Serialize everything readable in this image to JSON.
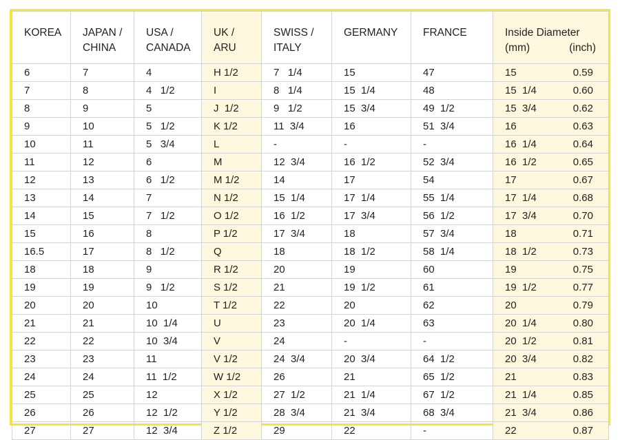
{
  "table": {
    "headers": {
      "korea": "KOREA",
      "japan_china": [
        "JAPAN /",
        "CHINA"
      ],
      "usa_canada": [
        "USA /",
        "CANADA"
      ],
      "uk_aru": [
        "UK /",
        "ARU"
      ],
      "swiss_italy": [
        "SWISS /",
        "ITALY"
      ],
      "germany": "GERMANY",
      "france": "FRANCE",
      "diameter": {
        "title": "Inside Diameter",
        "mm_unit": "(mm)",
        "inch_unit": "(inch)"
      }
    },
    "rows": [
      {
        "korea": "6",
        "japan": "7",
        "usa": "4",
        "uk": "H 1/2",
        "swiss": "7   1/4",
        "germany": "15",
        "france": "47",
        "mm": "15",
        "inch": "0.59"
      },
      {
        "korea": "7",
        "japan": "8",
        "usa": "4   1/2",
        "uk": "I",
        "swiss": "8   1/4",
        "germany": "15  1/4",
        "france": "48",
        "mm": "15  1/4",
        "inch": "0.60"
      },
      {
        "korea": "8",
        "japan": "9",
        "usa": "5",
        "uk": "J  1/2",
        "swiss": "9   1/2",
        "germany": "15  3/4",
        "france": "49  1/2",
        "mm": "15  3/4",
        "inch": "0.62"
      },
      {
        "korea": "9",
        "japan": "10",
        "usa": "5   1/2",
        "uk": "K 1/2",
        "swiss": "11  3/4",
        "germany": "16",
        "france": "51  3/4",
        "mm": "16",
        "inch": "0.63"
      },
      {
        "korea": "10",
        "japan": "11",
        "usa": "5   3/4",
        "uk": "L",
        "swiss": "-",
        "germany": "-",
        "france": "-",
        "mm": "16  1/4",
        "inch": "0.64"
      },
      {
        "korea": "11",
        "japan": "12",
        "usa": "6",
        "uk": "M",
        "swiss": "12  3/4",
        "germany": "16  1/2",
        "france": "52  3/4",
        "mm": "16  1/2",
        "inch": "0.65"
      },
      {
        "korea": "12",
        "japan": "13",
        "usa": "6   1/2",
        "uk": "M 1/2",
        "swiss": "14",
        "germany": "17",
        "france": "54",
        "mm": "17",
        "inch": "0.67"
      },
      {
        "korea": "13",
        "japan": "14",
        "usa": "7",
        "uk": "N 1/2",
        "swiss": "15  1/4",
        "germany": "17  1/4",
        "france": "55  1/4",
        "mm": "17  1/4",
        "inch": "0.68"
      },
      {
        "korea": "14",
        "japan": "15",
        "usa": "7   1/2",
        "uk": "O 1/2",
        "swiss": "16  1/2",
        "germany": "17  3/4",
        "france": "56  1/2",
        "mm": "17  3/4",
        "inch": "0.70"
      },
      {
        "korea": "15",
        "japan": "16",
        "usa": "8",
        "uk": "P 1/2",
        "swiss": "17  3/4",
        "germany": "18",
        "france": "57  3/4",
        "mm": "18",
        "inch": "0.71"
      },
      {
        "korea": "16.5",
        "japan": "17",
        "usa": "8   1/2",
        "uk": "Q",
        "swiss": "18",
        "germany": "18  1/2",
        "france": "58  1/4",
        "mm": "18  1/2",
        "inch": "0.73"
      },
      {
        "korea": "18",
        "japan": "18",
        "usa": "9",
        "uk": "R 1/2",
        "swiss": "20",
        "germany": "19",
        "france": "60",
        "mm": "19",
        "inch": "0.75"
      },
      {
        "korea": "19",
        "japan": "19",
        "usa": "9   1/2",
        "uk": "S 1/2",
        "swiss": "21",
        "germany": "19  1/2",
        "france": "61",
        "mm": "19  1/2",
        "inch": "0.77"
      },
      {
        "korea": "20",
        "japan": "20",
        "usa": "10",
        "uk": "T 1/2",
        "swiss": "22",
        "germany": "20",
        "france": "62",
        "mm": "20",
        "inch": "0.79"
      },
      {
        "korea": "21",
        "japan": "21",
        "usa": "10  1/4",
        "uk": "U",
        "swiss": "23",
        "germany": "20  1/4",
        "france": "63",
        "mm": "20  1/4",
        "inch": "0.80"
      },
      {
        "korea": "22",
        "japan": "22",
        "usa": "10  3/4",
        "uk": "V",
        "swiss": "24",
        "germany": "-",
        "france": "-",
        "mm": "20  1/2",
        "inch": "0.81"
      },
      {
        "korea": "23",
        "japan": "23",
        "usa": "11",
        "uk": "V 1/2",
        "swiss": "24  3/4",
        "germany": "20  3/4",
        "france": "64  1/2",
        "mm": "20  3/4",
        "inch": "0.82"
      },
      {
        "korea": "24",
        "japan": "24",
        "usa": "11  1/2",
        "uk": "W 1/2",
        "swiss": "26",
        "germany": "21",
        "france": "65  1/2",
        "mm": "21",
        "inch": "0.83"
      },
      {
        "korea": "25",
        "japan": "25",
        "usa": "12",
        "uk": "X 1/2",
        "swiss": "27  1/2",
        "germany": "21  1/4",
        "france": "67  1/2",
        "mm": "21  1/4",
        "inch": "0.85"
      },
      {
        "korea": "26",
        "japan": "26",
        "usa": "12  1/2",
        "uk": "Y 1/2",
        "swiss": "28  3/4",
        "germany": "21  3/4",
        "france": "68  3/4",
        "mm": "21  3/4",
        "inch": "0.86"
      },
      {
        "korea": "27",
        "japan": "27",
        "usa": "12  3/4",
        "uk": "Z 1/2",
        "swiss": "29",
        "germany": "22",
        "france": "-",
        "mm": "22",
        "inch": "0.87"
      }
    ]
  },
  "colors": {
    "frame": "#f5e53b",
    "highlight": "#fdf8dd",
    "grid": "#d4d4d4",
    "text": "#222222"
  }
}
